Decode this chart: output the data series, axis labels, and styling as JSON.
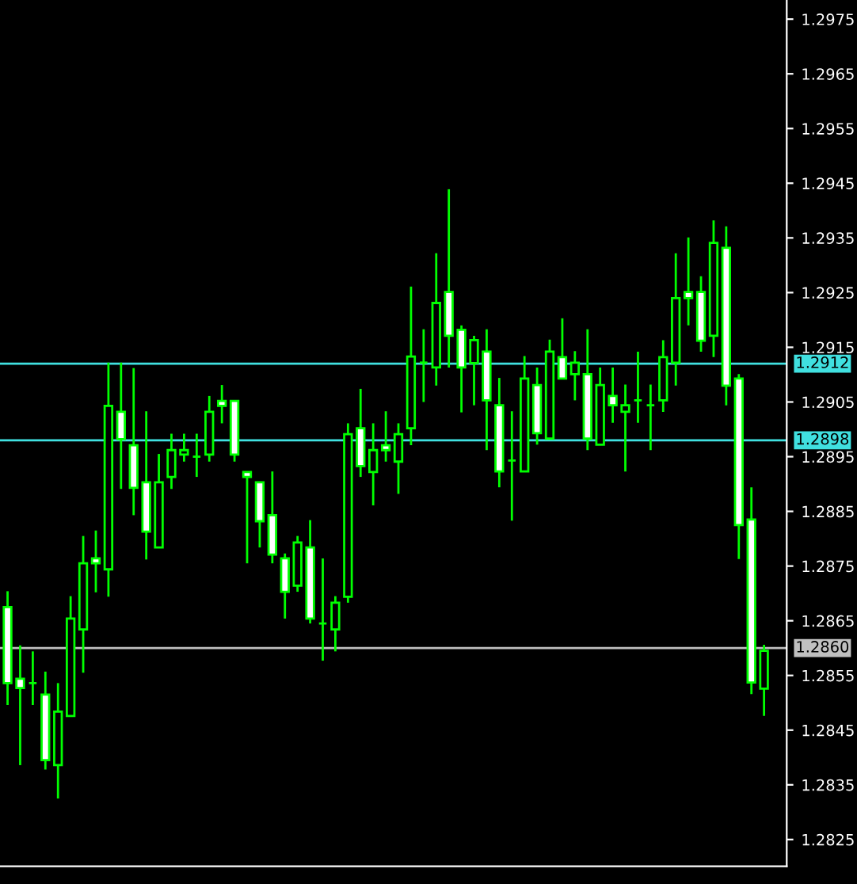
{
  "chart_data": {
    "type": "candlestick",
    "color": "#00ff00",
    "categories": [
      null,
      null,
      null,
      null,
      null,
      null,
      null,
      null,
      null,
      null,
      null,
      null,
      null,
      null,
      null,
      null,
      null,
      null,
      null,
      null,
      null,
      null,
      null,
      null,
      null,
      null,
      null,
      null,
      null,
      null,
      null,
      null,
      null,
      null,
      null,
      null,
      null,
      null,
      null,
      null,
      null,
      null,
      null,
      null,
      null,
      null,
      null,
      null,
      null,
      null,
      null,
      null,
      null,
      null,
      null,
      null,
      null,
      null,
      null,
      null,
      null
    ],
    "ohlc": [
      [
        1.28675,
        1.28704,
        1.28496,
        1.28536
      ],
      [
        1.28544,
        1.28605,
        1.28386,
        1.28527
      ],
      [
        1.28536,
        1.28594,
        1.28496,
        1.28536
      ],
      [
        1.28515,
        1.28557,
        1.28378,
        1.28395
      ],
      [
        1.28386,
        1.28536,
        1.28325,
        1.28484
      ],
      [
        1.28476,
        1.28695,
        1.28476,
        1.28654
      ],
      [
        1.28634,
        1.28805,
        1.28555,
        1.28755
      ],
      [
        1.28764,
        1.28815,
        1.28702,
        1.28755
      ],
      [
        1.28744,
        1.29122,
        1.28694,
        1.29043
      ],
      [
        1.29032,
        1.29122,
        1.28891,
        1.28982
      ],
      [
        1.28971,
        1.29112,
        1.28843,
        1.28893
      ],
      [
        1.28903,
        1.29033,
        1.28762,
        1.28813
      ],
      [
        1.28784,
        1.28955,
        1.28784,
        1.28903
      ],
      [
        1.28913,
        1.28992,
        1.28891,
        1.28962
      ],
      [
        1.28954,
        1.28992,
        1.28941,
        1.28962
      ],
      [
        1.2895,
        1.28992,
        1.28913,
        1.2895
      ],
      [
        1.28954,
        1.29061,
        1.28941,
        1.29032
      ],
      [
        1.29052,
        1.29081,
        1.29011,
        1.29043
      ],
      [
        1.29052,
        1.29052,
        1.28941,
        1.28954
      ],
      [
        1.28922,
        1.28922,
        1.28755,
        1.28913
      ],
      [
        1.28903,
        1.28903,
        1.28784,
        1.28832
      ],
      [
        1.28843,
        1.28923,
        1.28755,
        1.28771
      ],
      [
        1.28764,
        1.28773,
        1.28654,
        1.28703
      ],
      [
        1.28714,
        1.28805,
        1.28703,
        1.28793
      ],
      [
        1.28784,
        1.28834,
        1.28645,
        1.28654
      ],
      [
        1.28645,
        1.28764,
        1.28577,
        1.28645
      ],
      [
        1.28634,
        1.28695,
        1.28594,
        1.28683
      ],
      [
        1.28694,
        1.29011,
        1.28683,
        1.28991
      ],
      [
        1.29002,
        1.29074,
        1.28913,
        1.28933
      ],
      [
        1.28922,
        1.29011,
        1.28861,
        1.28962
      ],
      [
        1.28971,
        1.29033,
        1.28941,
        1.28962
      ],
      [
        1.28941,
        1.29011,
        1.28882,
        1.28991
      ],
      [
        1.29002,
        1.29261,
        1.28971,
        1.29133
      ],
      [
        1.29122,
        1.29183,
        1.2905,
        1.29122
      ],
      [
        1.29113,
        1.29322,
        1.2908,
        1.29231
      ],
      [
        1.29251,
        1.29439,
        1.29113,
        1.29171
      ],
      [
        1.29182,
        1.2919,
        1.29031,
        1.29113
      ],
      [
        1.29121,
        1.29171,
        1.29044,
        1.29163
      ],
      [
        1.29142,
        1.29183,
        1.28962,
        1.29053
      ],
      [
        1.29044,
        1.29094,
        1.28894,
        1.28923
      ],
      [
        1.28943,
        1.29033,
        1.28833,
        1.28943
      ],
      [
        1.28923,
        1.29134,
        1.28923,
        1.29093
      ],
      [
        1.29081,
        1.29113,
        1.28972,
        1.28993
      ],
      [
        1.28983,
        1.29164,
        1.28983,
        1.29142
      ],
      [
        1.29132,
        1.29203,
        1.29093,
        1.29093
      ],
      [
        1.29101,
        1.29143,
        1.29053,
        1.29122
      ],
      [
        1.29101,
        1.29183,
        1.28962,
        1.28983
      ],
      [
        1.28972,
        1.29113,
        1.28972,
        1.29081
      ],
      [
        1.29061,
        1.29113,
        1.29012,
        1.29044
      ],
      [
        1.29032,
        1.29082,
        1.28923,
        1.29044
      ],
      [
        1.29053,
        1.29142,
        1.29012,
        1.29053
      ],
      [
        1.29044,
        1.29082,
        1.28962,
        1.29044
      ],
      [
        1.29053,
        1.29163,
        1.29032,
        1.29132
      ],
      [
        1.29122,
        1.29322,
        1.2908,
        1.2924
      ],
      [
        1.29251,
        1.29351,
        1.2919,
        1.2924
      ],
      [
        1.29251,
        1.2928,
        1.29142,
        1.29162
      ],
      [
        1.29171,
        1.29382,
        1.29132,
        1.29341
      ],
      [
        1.29332,
        1.29371,
        1.29044,
        1.2908
      ],
      [
        1.29093,
        1.29101,
        1.28763,
        1.28825
      ],
      [
        1.28835,
        1.28894,
        1.28516,
        1.28537
      ],
      [
        1.28526,
        1.28606,
        1.28476,
        1.28595
      ]
    ],
    "ylim": [
      1.28201,
      1.29785
    ],
    "yticks": [
      1.2825,
      1.2835,
      1.2845,
      1.2855,
      1.2865,
      1.2875,
      1.2885,
      1.2895,
      1.2905,
      1.2915,
      1.2925,
      1.2935,
      1.2945,
      1.2955,
      1.2965,
      1.2975
    ],
    "tick_labels": "y",
    "grid": false,
    "ref_lines": [
      {
        "axis": "y",
        "value": 1.2912,
        "label": "1.2912",
        "color": "#40e0e0"
      },
      {
        "axis": "y",
        "value": 1.2898,
        "label": "1.2898",
        "color": "#40e0e0"
      },
      {
        "axis": "y",
        "value": 1.286,
        "label": "1.2860",
        "color": "#c0c0c0"
      }
    ]
  }
}
